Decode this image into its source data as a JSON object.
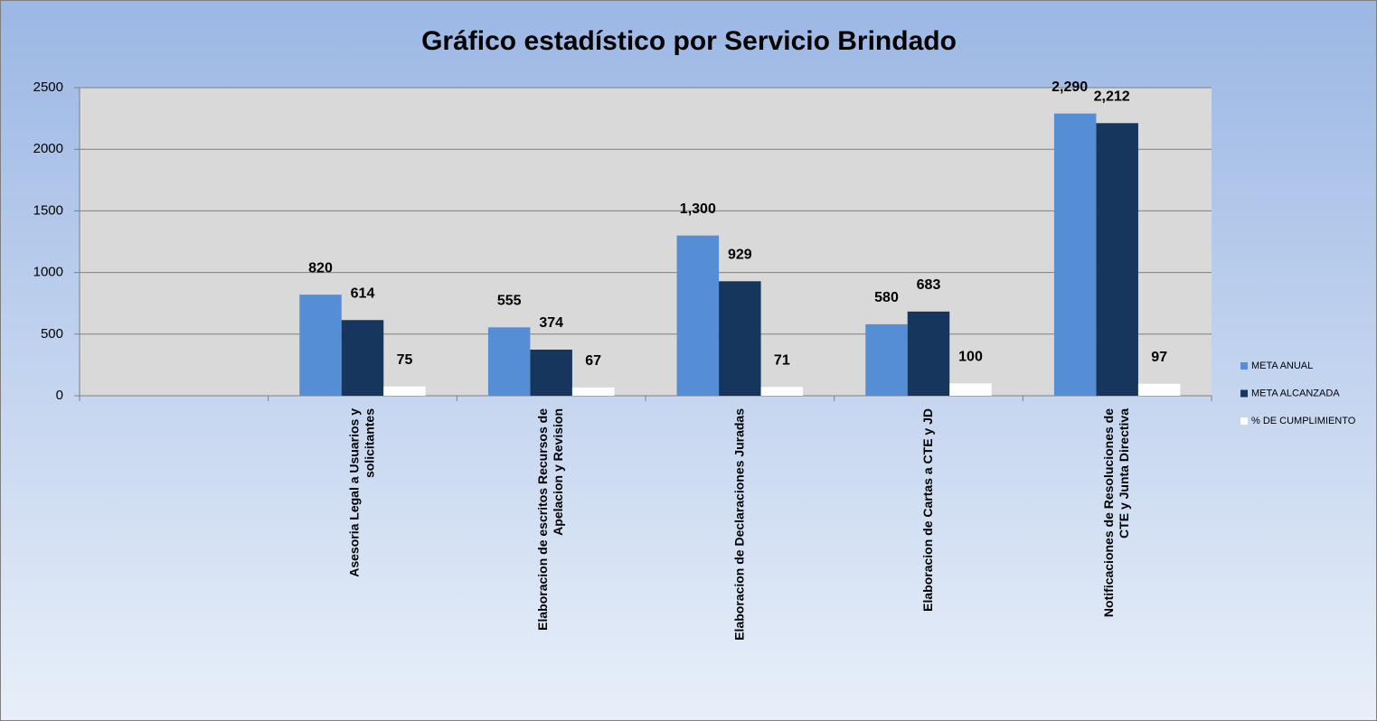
{
  "chart_data": {
    "type": "bar",
    "title": "Gráfico estadístico por Servicio Brindado",
    "categories": [
      null,
      "Asesoria Legal a Usuarios y solicitantes",
      "Elaboracion de escritos Recursos de Apelacion y Revision",
      "Elaboracion de Declaraciones Juradas",
      "Elaboracion de Cartas a CTE y JD",
      "Notificaciones de Resoluciones de CTE y Junta Directiva"
    ],
    "series": [
      {
        "name": "META ANUAL",
        "color": "#558ed5",
        "values": [
          null,
          820,
          555,
          1300,
          580,
          2290
        ],
        "value_labels": [
          null,
          "820",
          "555",
          "1,300",
          "580",
          "2,290"
        ]
      },
      {
        "name": "META ALCANZADA",
        "color": "#17365d",
        "values": [
          null,
          614,
          374,
          929,
          683,
          2212
        ],
        "value_labels": [
          null,
          "614",
          "374",
          "929",
          "683",
          "2,212"
        ]
      },
      {
        "name": "% DE CUMPLIMIENTO",
        "color": "#ffffff",
        "values": [
          null,
          75,
          67,
          71,
          100,
          97
        ]
      }
    ],
    "ylim": [
      0,
      2500
    ],
    "yticks": [
      0,
      500,
      1000,
      1500,
      2000,
      2500
    ],
    "grid": true,
    "legend": "right"
  }
}
